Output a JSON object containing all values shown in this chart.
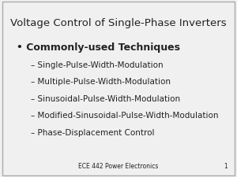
{
  "title": "Voltage Control of Single-Phase Inverters",
  "bullet_header": "Commonly-used Techniques",
  "sub_items": [
    "Single-Pulse-Width-Modulation",
    "Multiple-Pulse-Width-Modulation",
    "Sinusoidal-Pulse-Width-Modulation",
    "Modified-Sinusoidal-Pulse-Width-Modulation",
    "Phase-Displacement Control"
  ],
  "footer": "ECE 442 Power Electronics",
  "page_number": "1",
  "bg_color": "#f0f0f0",
  "border_color": "#aaaaaa",
  "text_color": "#222222",
  "title_fontsize": 9.5,
  "header_fontsize": 9.0,
  "item_fontsize": 7.5,
  "footer_fontsize": 5.5
}
